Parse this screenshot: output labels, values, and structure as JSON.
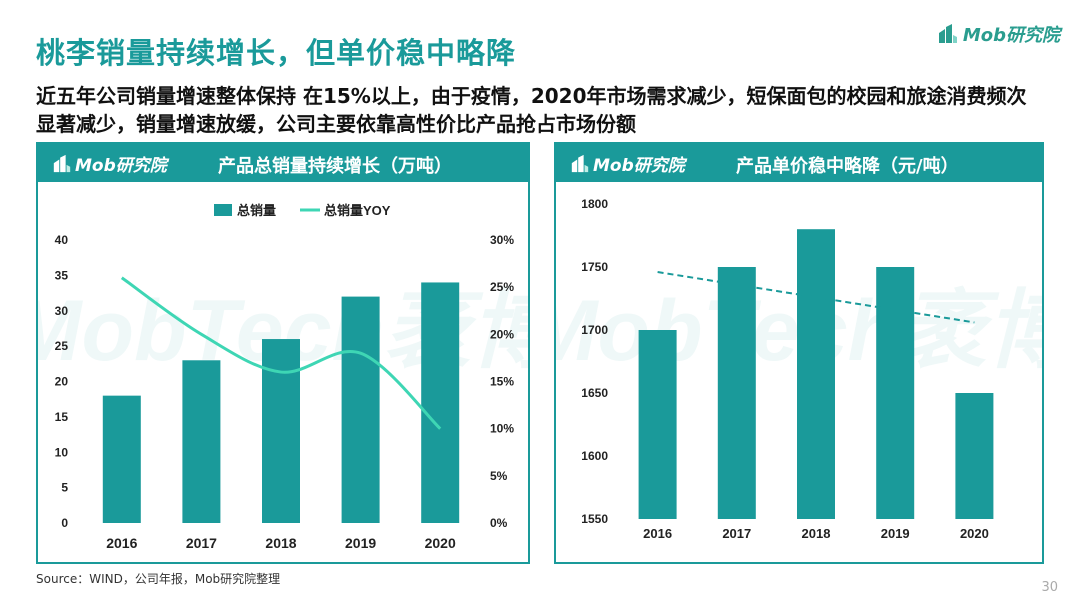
{
  "page": {
    "title": "桃李销量持续增长，但单价稳中略降",
    "subtitle": "近五年公司销量增速整体保持 在15%以上，由于疫情，2020年市场需求减少，短保面包的校园和旅途消费频次显著减少，销量增速放缓，公司主要依靠高性价比产品抢占市场份额",
    "logo_text": "Mob研究院",
    "source": "Source：WIND，公司年报，Mob研究院整理",
    "page_number": "30",
    "watermark_text": "MobTech袤博"
  },
  "colors": {
    "teal": "#1a9a9a",
    "line": "#3ed6b4",
    "dashed": "#1a9a9a"
  },
  "chart_data": [
    {
      "type": "bar",
      "title": "产品总销量持续增长（万吨）",
      "logo_text": "Mob研究院",
      "categories": [
        "2016",
        "2017",
        "2018",
        "2019",
        "2020"
      ],
      "series": [
        {
          "name": "总销量",
          "type": "bar",
          "axis": "left",
          "values": [
            18,
            23,
            26,
            32,
            34
          ]
        },
        {
          "name": "总销量YOY",
          "type": "line",
          "axis": "right",
          "values": [
            26,
            20,
            16,
            18,
            10
          ]
        }
      ],
      "ylim": [
        0,
        40
      ],
      "yticks": [
        "0",
        "5",
        "10",
        "15",
        "20",
        "25",
        "30",
        "35",
        "40"
      ],
      "y2lim": [
        0,
        30
      ],
      "y2ticks": [
        "0%",
        "5%",
        "10%",
        "15%",
        "20%",
        "25%",
        "30%"
      ],
      "legend": "top-center"
    },
    {
      "type": "bar",
      "title": "产品单价稳中略降（元/吨）",
      "logo_text": "Mob研究院",
      "categories": [
        "2016",
        "2017",
        "2018",
        "2019",
        "2020"
      ],
      "values": [
        1700,
        1750,
        1780,
        1750,
        1650
      ],
      "trendline": {
        "type": "linear",
        "style": "dashed"
      },
      "ylim": [
        1550,
        1800
      ],
      "yticks": [
        "1550",
        "1600",
        "1650",
        "1700",
        "1750",
        "1800"
      ]
    }
  ]
}
